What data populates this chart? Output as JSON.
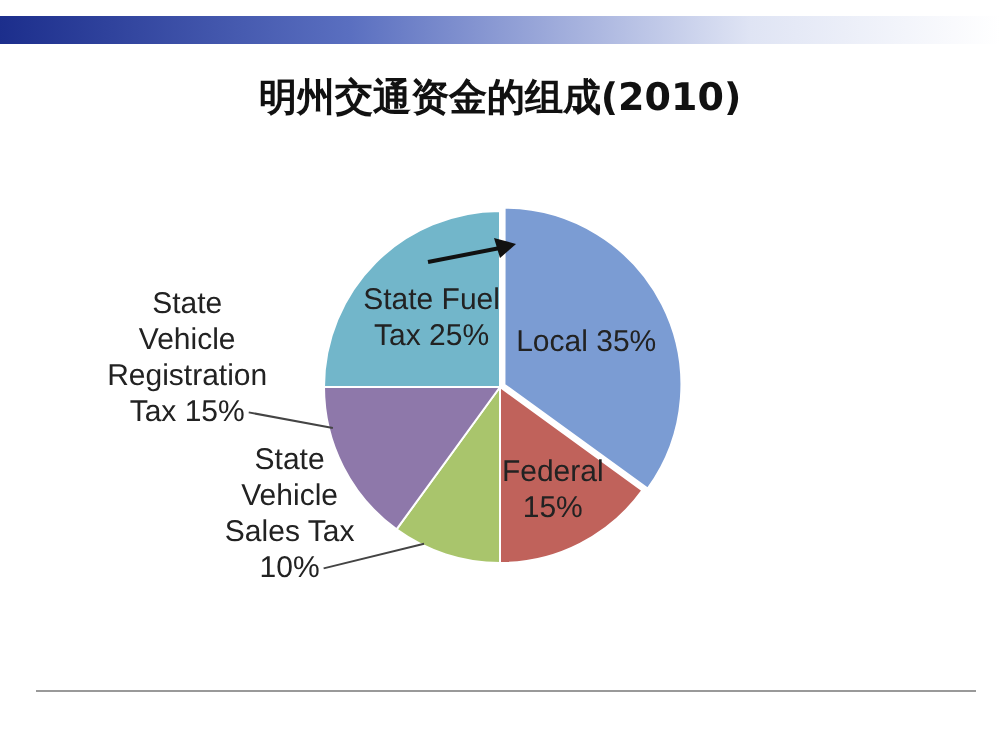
{
  "chart_data": {
    "type": "pie",
    "title": "明州交通资金的组成(2010)",
    "categories": [
      "Local",
      "Federal",
      "State Vehicle Sales Tax",
      "State Vehicle Registration Tax",
      "State Fuel Tax"
    ],
    "values": [
      35,
      15,
      10,
      15,
      25
    ],
    "value_labels": [
      "35%",
      "15%",
      "10%",
      "15%",
      "25%"
    ],
    "colors": [
      "#7b9cd3",
      "#c0625b",
      "#a9c56c",
      "#8e78aa",
      "#72b6ca"
    ],
    "legend": false
  }
}
